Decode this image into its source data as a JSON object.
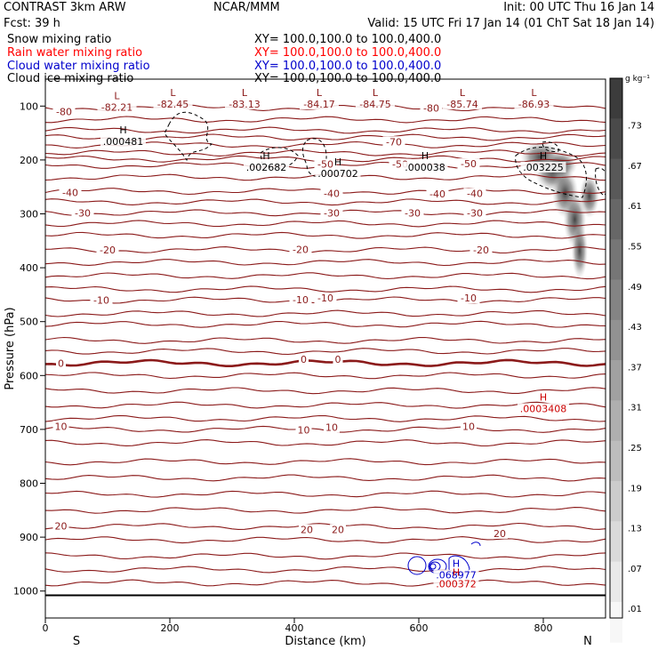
{
  "header": {
    "left1": "CONTRAST  3km ARW",
    "left2": "Fcst:    39 h",
    "center": "NCAR/MMM",
    "init": "Init: 00 UTC Thu 16 Jan 14",
    "valid": "Valid: 15 UTC Fri 17 Jan 14 (01 ChT Sat 18 Jan 14)"
  },
  "legend": {
    "items": [
      {
        "label": "Snow mixing ratio",
        "xy": "XY=  100.0,100.0 to 100.0,400.0",
        "color": "#000000"
      },
      {
        "label": "Rain water mixing ratio",
        "xy": "XY=  100.0,100.0 to 100.0,400.0",
        "color": "#ff0000"
      },
      {
        "label": "Cloud water mixing ratio",
        "xy": "XY=  100.0,100.0 to 100.0,400.0",
        "color": "#0000cc"
      },
      {
        "label": "Cloud ice mixing ratio",
        "xy": "XY=  100.0,100.0 to 100.0,400.0",
        "color": "#000000"
      }
    ]
  },
  "chart_data": {
    "type": "contour",
    "xlabel": "Distance (km)",
    "ylabel": "Pressure (hPa)",
    "xlim": [
      0,
      900
    ],
    "ylim": [
      1050,
      50
    ],
    "x_ticks": [
      0,
      200,
      400,
      600,
      800
    ],
    "y_ticks": [
      100,
      200,
      300,
      400,
      500,
      600,
      700,
      800,
      900,
      1000
    ],
    "x_end_labels": {
      "left": "S",
      "right": "N"
    },
    "colorbar": {
      "unit": "g kg⁻¹",
      "labels": [
        ".73",
        ".67",
        ".61",
        ".55",
        ".49",
        ".43",
        ".37",
        ".31",
        ".25",
        ".19",
        ".13",
        ".07",
        ".01"
      ]
    },
    "temperature_contours": {
      "color": "#8b1a1a",
      "labels": [
        {
          "text": "-80",
          "x": 30,
          "p": 110
        },
        {
          "text": "-80",
          "x": 620,
          "p": 104
        },
        {
          "text": "-70",
          "x": 560,
          "p": 166
        },
        {
          "text": "-50",
          "x": 450,
          "p": 208
        },
        {
          "text": "-50",
          "x": 570,
          "p": 208
        },
        {
          "text": "-50",
          "x": 680,
          "p": 207
        },
        {
          "text": "-50",
          "x": 450,
          "p": 208
        },
        {
          "text": "-40",
          "x": 40,
          "p": 260
        },
        {
          "text": "-40",
          "x": 460,
          "p": 262
        },
        {
          "text": "-40",
          "x": 630,
          "p": 263
        },
        {
          "text": "-40",
          "x": 690,
          "p": 262
        },
        {
          "text": "-30",
          "x": 60,
          "p": 298
        },
        {
          "text": "-30",
          "x": 460,
          "p": 298
        },
        {
          "text": "-30",
          "x": 590,
          "p": 298
        },
        {
          "text": "-30",
          "x": 690,
          "p": 298
        },
        {
          "text": "-20",
          "x": 100,
          "p": 367
        },
        {
          "text": "-20",
          "x": 410,
          "p": 366
        },
        {
          "text": "-20",
          "x": 700,
          "p": 367
        },
        {
          "text": "-10",
          "x": 90,
          "p": 460
        },
        {
          "text": "-10",
          "x": 410,
          "p": 459
        },
        {
          "text": "-10",
          "x": 450,
          "p": 456
        },
        {
          "text": "-10",
          "x": 680,
          "p": 456
        },
        {
          "text": "0",
          "x": 25,
          "p": 577
        },
        {
          "text": "0",
          "x": 415,
          "p": 570
        },
        {
          "text": "0",
          "x": 470,
          "p": 570
        },
        {
          "text": "10",
          "x": 25,
          "p": 694
        },
        {
          "text": "10",
          "x": 415,
          "p": 701
        },
        {
          "text": "10",
          "x": 460,
          "p": 696
        },
        {
          "text": "10",
          "x": 680,
          "p": 694
        },
        {
          "text": "20",
          "x": 25,
          "p": 879
        },
        {
          "text": "20",
          "x": 420,
          "p": 886
        },
        {
          "text": "20",
          "x": 470,
          "p": 886
        },
        {
          "text": "20",
          "x": 730,
          "p": 893
        }
      ]
    },
    "extrema": [
      {
        "kind": "L",
        "value": "-82.21",
        "x": 115,
        "p": 99,
        "color": "#8b1a1a"
      },
      {
        "kind": "L",
        "value": "-82.45",
        "x": 205,
        "p": 93,
        "color": "#8b1a1a"
      },
      {
        "kind": "L",
        "value": "-83.13",
        "x": 320,
        "p": 93,
        "color": "#8b1a1a"
      },
      {
        "kind": "L",
        "value": "-84.17",
        "x": 440,
        "p": 93,
        "color": "#8b1a1a"
      },
      {
        "kind": "L",
        "value": "-84.75",
        "x": 530,
        "p": 93,
        "color": "#8b1a1a"
      },
      {
        "kind": "L",
        "value": "-85.74",
        "x": 670,
        "p": 93,
        "color": "#8b1a1a"
      },
      {
        "kind": "L",
        "value": "-86.93",
        "x": 785,
        "p": 93,
        "color": "#8b1a1a"
      },
      {
        "kind": "H",
        "value": ".000481",
        "x": 125,
        "p": 162,
        "color": "#000000"
      },
      {
        "kind": "H",
        "value": ".002682",
        "x": 355,
        "p": 210,
        "color": "#000000"
      },
      {
        "kind": "H",
        "value": ".000702",
        "x": 470,
        "p": 222,
        "color": "#000000"
      },
      {
        "kind": "H",
        "value": ".000038",
        "x": 610,
        "p": 210,
        "color": "#000000"
      },
      {
        "kind": "H",
        "value": ".003225",
        "x": 800,
        "p": 210,
        "color": "#000000"
      },
      {
        "kind": "H",
        "value": ".0003408",
        "x": 800,
        "p": 658,
        "color": "#cc0000"
      },
      {
        "kind": "H",
        "value": ".068977",
        "x": 660,
        "p": 967,
        "color": "#0000cc"
      },
      {
        "kind": "H",
        "value": ".000372",
        "x": 660,
        "p": 983,
        "color": "#cc0000"
      }
    ],
    "snow_shading": {
      "peak_value": 0.67,
      "region_x": [
        770,
        900
      ],
      "region_p": [
        180,
        470
      ]
    },
    "grid": false
  }
}
